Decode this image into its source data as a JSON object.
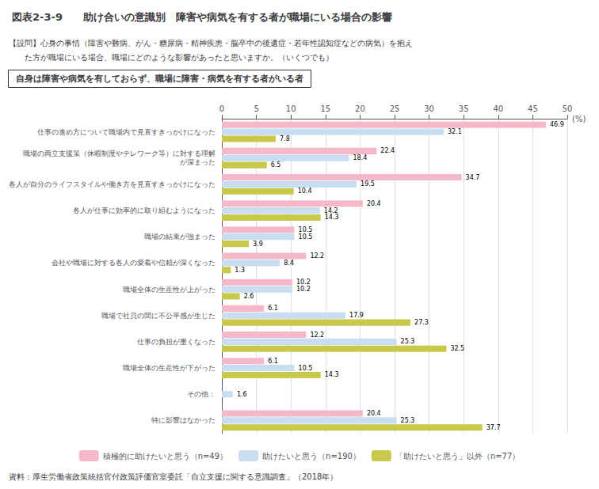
{
  "chart_data": {
    "type": "bar",
    "orientation": "horizontal",
    "title_label": "図表2-3-9",
    "title": "助け合いの意識別　障害や病気を有する者が職場にいる場合の影響",
    "question": [
      "【設問】心身の事情（障害や難病、がん・糖尿病・精神疾患・脳卒中の後遺症・若年性認知症などの病気）を抱え",
      "　　た方が職場にいる場合、職場にどのような影響があったと思いますか。（いくつでも）"
    ],
    "subtitle": "自身は障害や病気を有しておらず、職場に障害・病気を有する者がいる者",
    "source": "資料：厚生労働省政策統括官付政策評価官室委託「自立支援に関する意識調査」（2018年）",
    "xlabel": "(%)",
    "categories": [
      "仕事の進め方について職場内で見直すきっかけになった",
      "職場の両立支援策（休暇制度やテレワーク等）に対する理解\nが深まった",
      "各人が自分のライフスタイルや働き方を見直すきっかけになった",
      "各人が仕事に効率的に取り組むようになった",
      "職場の結束が強まった",
      "会社や職場に対する各人の愛着や信頼が深くなった",
      "職場全体の生産性が上がった",
      "職場で社員の間に不公平感が生じた",
      "仕事の負担が重くなった",
      "職場全体の生産性が下がった",
      "その他：",
      "特に影響はなかった"
    ],
    "series": [
      {
        "name": "積極的に助けたいと思う（n=49）",
        "color": "#f4b8c8",
        "values": [
          46.9,
          22.4,
          34.7,
          20.4,
          10.5,
          12.2,
          10.2,
          6.1,
          12.2,
          6.1,
          0.0,
          20.4
        ]
      },
      {
        "name": "助けたいと思う（n=190）",
        "color": "#c8ddf0",
        "values": [
          32.1,
          18.4,
          19.5,
          14.2,
          10.5,
          8.4,
          10.2,
          17.9,
          25.3,
          10.5,
          1.6,
          25.3
        ]
      },
      {
        "name": "「助けたいと思う」以外（n=77）",
        "color": "#c8c84a",
        "values": [
          7.8,
          6.5,
          10.4,
          14.3,
          3.9,
          1.3,
          2.6,
          27.3,
          32.5,
          14.3,
          0.0,
          37.7
        ]
      }
    ],
    "xlim": [
      0,
      50
    ],
    "xticks": [
      0,
      5,
      10,
      15,
      20,
      25,
      30,
      35,
      40,
      45,
      50
    ],
    "grid": true,
    "legend": "bottom",
    "data_labels": true
  }
}
